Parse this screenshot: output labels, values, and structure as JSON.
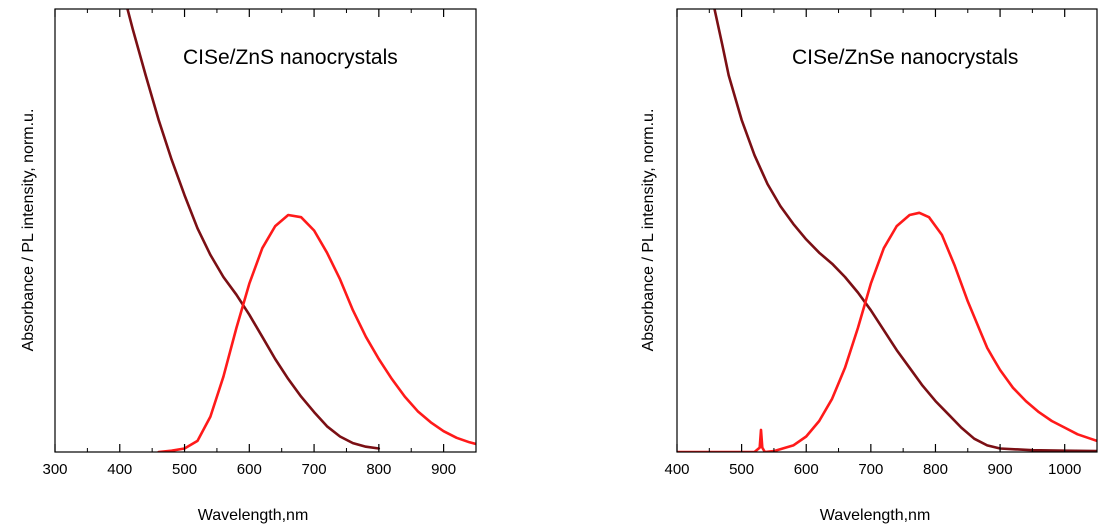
{
  "chart_data": [
    {
      "type": "line",
      "title": "CISe/ZnS nanocrystals",
      "xlabel": "Wavelength,nm",
      "ylabel": "Absorbance / PL intensity, norm.u.",
      "xlim": [
        300,
        950
      ],
      "ylim": [
        0,
        1
      ],
      "xticks": [
        300,
        400,
        500,
        600,
        700,
        800,
        900
      ],
      "grid": false,
      "series": [
        {
          "color": "#7b0f14",
          "x": [
            412,
            420,
            440,
            460,
            480,
            500,
            520,
            540,
            560,
            580,
            600,
            620,
            640,
            660,
            680,
            700,
            720,
            740,
            760,
            780,
            800
          ],
          "y": [
            1.0,
            0.955,
            0.85,
            0.75,
            0.66,
            0.58,
            0.505,
            0.445,
            0.395,
            0.355,
            0.31,
            0.26,
            0.21,
            0.165,
            0.125,
            0.09,
            0.058,
            0.035,
            0.02,
            0.012,
            0.008
          ]
        },
        {
          "color": "#ff1a1a",
          "x": [
            460,
            480,
            500,
            520,
            540,
            560,
            580,
            600,
            620,
            640,
            660,
            680,
            700,
            720,
            740,
            760,
            780,
            800,
            820,
            840,
            860,
            880,
            900,
            920,
            940,
            950
          ],
          "y": [
            0.0,
            0.003,
            0.008,
            0.025,
            0.08,
            0.17,
            0.28,
            0.38,
            0.46,
            0.51,
            0.535,
            0.53,
            0.5,
            0.45,
            0.39,
            0.32,
            0.26,
            0.21,
            0.165,
            0.125,
            0.092,
            0.067,
            0.047,
            0.032,
            0.022,
            0.018
          ]
        }
      ]
    },
    {
      "type": "line",
      "title": "CISe/ZnSe nanocrystals",
      "xlabel": "Wavelength,nm",
      "ylabel": "Absorbance / PL intensity, norm.u.",
      "xlim": [
        400,
        1050
      ],
      "ylim": [
        0,
        1
      ],
      "xticks": [
        400,
        500,
        600,
        700,
        800,
        900,
        1000
      ],
      "grid": false,
      "series": [
        {
          "color": "#7b0f14",
          "x": [
            458,
            470,
            480,
            500,
            520,
            540,
            560,
            580,
            600,
            620,
            640,
            660,
            680,
            700,
            720,
            740,
            760,
            780,
            800,
            820,
            840,
            860,
            880,
            900,
            950,
            1000,
            1050
          ],
          "y": [
            1.0,
            0.92,
            0.85,
            0.75,
            0.67,
            0.605,
            0.555,
            0.515,
            0.48,
            0.45,
            0.425,
            0.395,
            0.36,
            0.32,
            0.275,
            0.23,
            0.19,
            0.15,
            0.115,
            0.085,
            0.055,
            0.03,
            0.015,
            0.008,
            0.004,
            0.003,
            0.002
          ]
        },
        {
          "color": "#ff1a1a",
          "x": [
            400,
            520,
            528,
            530,
            532,
            536,
            550,
            580,
            600,
            620,
            640,
            660,
            680,
            700,
            720,
            740,
            760,
            775,
            790,
            810,
            830,
            850,
            870,
            880,
            890,
            900,
            920,
            940,
            960,
            980,
            1000,
            1020,
            1040,
            1050
          ],
          "y": [
            0.0,
            0.0,
            0.01,
            0.05,
            0.01,
            0.0,
            0.002,
            0.015,
            0.035,
            0.07,
            0.12,
            0.19,
            0.28,
            0.38,
            0.46,
            0.51,
            0.535,
            0.54,
            0.53,
            0.49,
            0.42,
            0.34,
            0.27,
            0.235,
            0.21,
            0.185,
            0.145,
            0.115,
            0.09,
            0.07,
            0.055,
            0.04,
            0.03,
            0.025
          ]
        }
      ]
    }
  ]
}
